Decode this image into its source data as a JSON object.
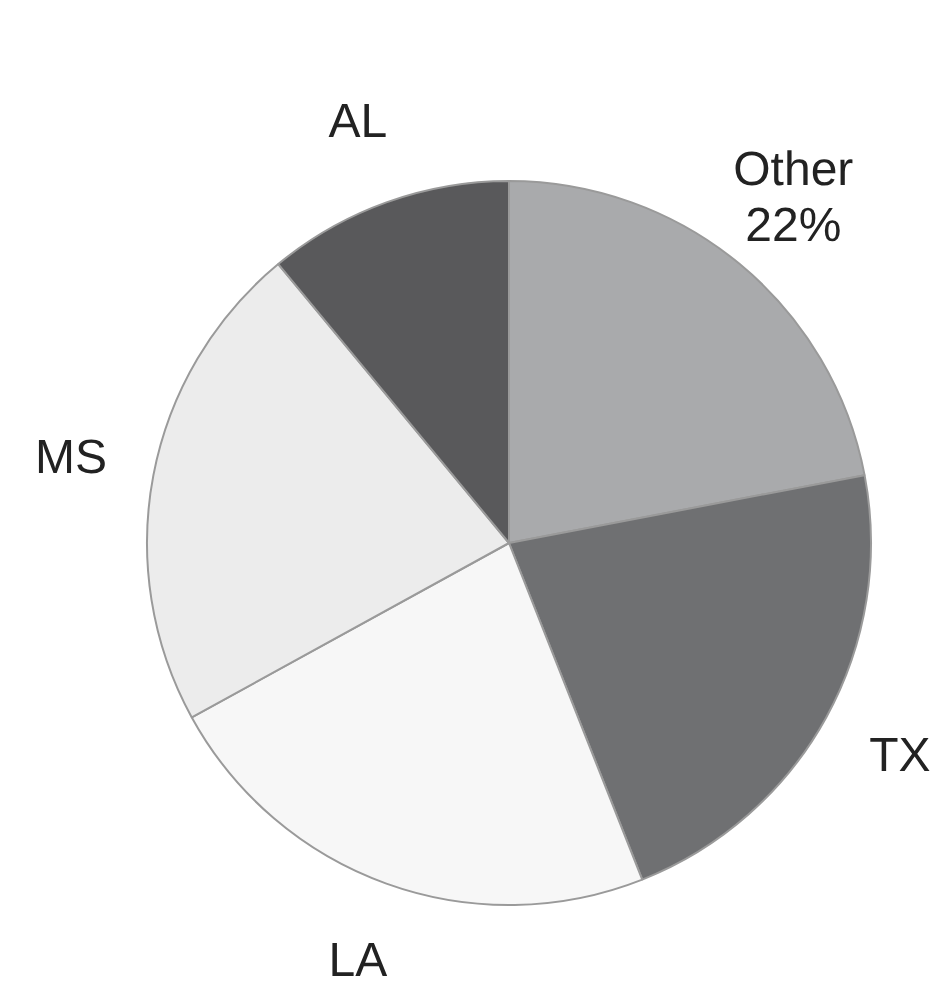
{
  "chart_data": {
    "type": "pie",
    "categories": [
      "Other",
      "TX",
      "LA",
      "MS",
      "AL"
    ],
    "values": [
      22,
      22,
      23,
      22,
      11
    ],
    "value_labels": [
      "22%",
      null,
      null,
      null,
      null
    ],
    "colors": [
      "#a9aaac",
      "#6f7072",
      "#f7f7f7",
      "#ececec",
      "#59595b"
    ]
  }
}
